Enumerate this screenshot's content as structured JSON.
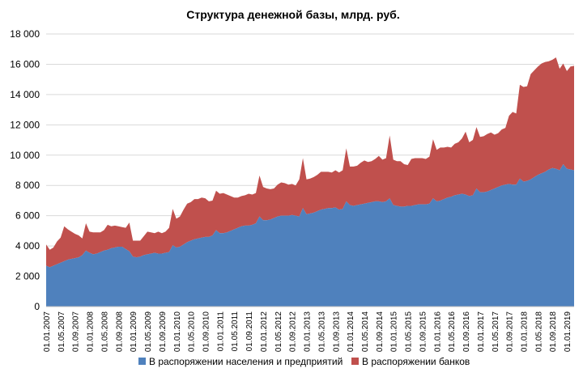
{
  "chart_data": {
    "type": "area",
    "stacked": true,
    "title": "Структура денежной базы, млрд. руб.",
    "xlabel": "",
    "ylabel": "",
    "ylim": [
      0,
      18000
    ],
    "y_ticks": [
      0,
      2000,
      4000,
      6000,
      8000,
      10000,
      12000,
      14000,
      16000,
      18000
    ],
    "y_tick_labels": [
      "0",
      "2 000",
      "4 000",
      "6 000",
      "8 000",
      "10 000",
      "12 000",
      "14 000",
      "16 000",
      "18 000"
    ],
    "grid": true,
    "legend_position": "bottom",
    "x_tick_labels": [
      "01.01.2007",
      "01.05.2007",
      "01.09.2007",
      "01.01.2008",
      "01.05.2008",
      "01.09.2008",
      "01.01.2009",
      "01.05.2009",
      "01.09.2009",
      "01.01.2010",
      "01.05.2010",
      "01.09.2010",
      "01.01.2011",
      "01.05.2011",
      "01.09.2011",
      "01.01.2012",
      "01.05.2012",
      "01.09.2012",
      "01.01.2013",
      "01.05.2013",
      "01.09.2013",
      "01.01.2014",
      "01.05.2014",
      "01.09.2014",
      "01.01.2015",
      "01.05.2015",
      "01.09.2015",
      "01.01.2016",
      "01.05.2016",
      "01.09.2016",
      "01.01.2017",
      "01.05.2017",
      "01.09.2017",
      "01.01.2018",
      "01.05.2018",
      "01.09.2018",
      "01.01.2019"
    ],
    "x_start": "01.01.2007",
    "x_step_months": 1,
    "series": [
      {
        "name": "В распоряжении населения и предприятий",
        "color": "#4F81BD",
        "values": [
          2700,
          2600,
          2700,
          2800,
          2900,
          3000,
          3100,
          3150,
          3200,
          3250,
          3400,
          3700,
          3550,
          3450,
          3500,
          3600,
          3700,
          3750,
          3850,
          3900,
          3950,
          3950,
          3800,
          3650,
          3300,
          3250,
          3300,
          3400,
          3450,
          3500,
          3550,
          3500,
          3500,
          3550,
          3600,
          4050,
          3900,
          3950,
          4100,
          4250,
          4350,
          4450,
          4500,
          4550,
          4600,
          4600,
          4700,
          5050,
          4850,
          4850,
          4900,
          5000,
          5100,
          5200,
          5300,
          5350,
          5350,
          5400,
          5500,
          5950,
          5700,
          5700,
          5750,
          5850,
          5950,
          6000,
          6000,
          6000,
          6050,
          6000,
          5950,
          6500,
          6100,
          6150,
          6200,
          6300,
          6400,
          6450,
          6500,
          6500,
          6550,
          6400,
          6450,
          6950,
          6700,
          6650,
          6700,
          6750,
          6800,
          6850,
          6900,
          6950,
          6950,
          6900,
          6950,
          7150,
          6700,
          6650,
          6600,
          6600,
          6650,
          6650,
          6700,
          6750,
          6750,
          6750,
          6800,
          7150,
          6950,
          7000,
          7100,
          7200,
          7250,
          7350,
          7400,
          7450,
          7400,
          7300,
          7350,
          7800,
          7550,
          7550,
          7600,
          7700,
          7800,
          7900,
          8000,
          8050,
          8100,
          8050,
          8050,
          8450,
          8250,
          8300,
          8400,
          8550,
          8700,
          8800,
          8900,
          9050,
          9150,
          9100,
          9000,
          9400,
          9100,
          9050,
          9000
        ]
      },
      {
        "name": "В распоряжении банков",
        "color": "#C0504D",
        "values": [
          1400,
          1150,
          1200,
          1500,
          1650,
          2300,
          2000,
          1800,
          1600,
          1450,
          1100,
          1800,
          1400,
          1450,
          1400,
          1300,
          1350,
          1650,
          1450,
          1450,
          1350,
          1300,
          1400,
          1900,
          1050,
          1100,
          1050,
          1250,
          1500,
          1400,
          1300,
          1450,
          1350,
          1400,
          1600,
          2400,
          1900,
          2000,
          2300,
          2550,
          2550,
          2650,
          2600,
          2650,
          2550,
          2350,
          2300,
          2600,
          2600,
          2650,
          2500,
          2300,
          2100,
          2000,
          2000,
          2000,
          2100,
          2000,
          2000,
          2700,
          2200,
          2100,
          2000,
          1950,
          2100,
          2200,
          2150,
          2050,
          2050,
          2000,
          2450,
          3300,
          2300,
          2300,
          2350,
          2400,
          2500,
          2450,
          2400,
          2350,
          2450,
          2450,
          2550,
          3500,
          2550,
          2600,
          2600,
          2750,
          2850,
          2700,
          2700,
          2800,
          3000,
          2800,
          2850,
          4150,
          3000,
          2950,
          3000,
          2800,
          2700,
          3100,
          3100,
          3050,
          3050,
          3000,
          3100,
          3900,
          3400,
          3500,
          3400,
          3350,
          3250,
          3400,
          3450,
          3650,
          4150,
          3550,
          3650,
          4050,
          3650,
          3700,
          3800,
          3800,
          3550,
          3550,
          3700,
          3750,
          4500,
          4800,
          4700,
          6200,
          6250,
          6250,
          6950,
          7050,
          7150,
          7250,
          7250,
          7150,
          7150,
          7350,
          6700,
          6650,
          6450,
          6800,
          6900
        ]
      }
    ]
  }
}
